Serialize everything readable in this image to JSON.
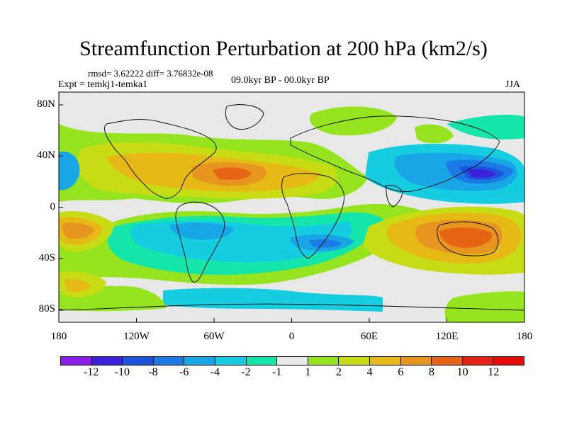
{
  "title": "Streamfunction Perturbation at 200 hPa (km2/s)",
  "stats": "rmsd= 3.62222 diff= 3.76832e-08",
  "experiment": "Expt = temkj1-temka1",
  "period": "09.0kyr BP - 00.0kyr BP",
  "season": "JJA",
  "axes": {
    "y_ticks": [
      "80N",
      "40N",
      "0",
      "40S",
      "80S"
    ],
    "x_ticks": [
      "180",
      "120W",
      "60W",
      "0",
      "60E",
      "120E",
      "180"
    ]
  },
  "colorbar": {
    "labels": [
      "-12",
      "-10",
      "-8",
      "-6",
      "-4",
      "-2",
      "-1",
      "1",
      "2",
      "4",
      "6",
      "8",
      "10",
      "12"
    ],
    "colors": [
      "#8a1ee6",
      "#3a22dc",
      "#1a55dc",
      "#1a7ae6",
      "#18a6e6",
      "#14cde0",
      "#14e6aa",
      "#e8e8e8",
      "#96e41e",
      "#c8dc14",
      "#e6b914",
      "#e6961e",
      "#e66414",
      "#e61e14",
      "#e60a0a"
    ]
  },
  "colors": {
    "background": "#e8e8e8",
    "coast": "#000000"
  }
}
